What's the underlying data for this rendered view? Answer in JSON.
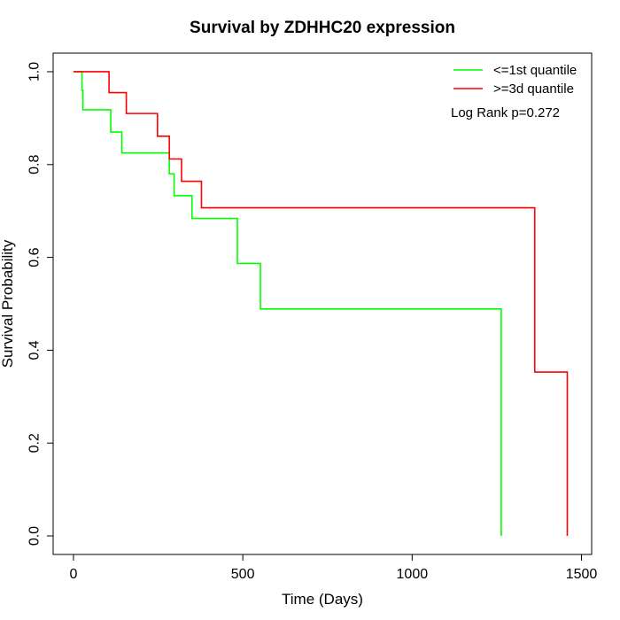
{
  "chart_data": {
    "type": "line",
    "step": true,
    "title": "Survival by ZDHHC20 expression",
    "xlabel": "Time (Days)",
    "ylabel": "Survival Probability",
    "xlim": [
      -60,
      1530
    ],
    "ylim": [
      -0.04,
      1.04
    ],
    "xticks": [
      0,
      500,
      1000,
      1500
    ],
    "xtick_labels": [
      "0",
      "500",
      "1000",
      "1500"
    ],
    "yticks": [
      0.0,
      0.2,
      0.4,
      0.6,
      0.8,
      1.0
    ],
    "ytick_labels": [
      "0.0",
      "0.2",
      "0.4",
      "0.6",
      "0.8",
      "1.0"
    ],
    "grid": false,
    "legend_position": "top-right",
    "annotation": "Log Rank p=0.272",
    "series": [
      {
        "name": "<=1st quantile",
        "color": "#00ff00",
        "x": [
          0,
          25,
          28,
          110,
          143,
          283,
          297,
          350,
          484,
          552,
          1263
        ],
        "y": [
          1.0,
          0.96,
          0.918,
          0.87,
          0.825,
          0.78,
          0.733,
          0.684,
          0.587,
          0.489,
          0.0
        ]
      },
      {
        "name": ">=3d quantile",
        "color": "#ff0000",
        "x": [
          0,
          105,
          156,
          248,
          283,
          319,
          378,
          1362,
          1458
        ],
        "y": [
          1.0,
          0.955,
          0.91,
          0.861,
          0.812,
          0.764,
          0.707,
          0.353,
          0.0
        ]
      }
    ]
  }
}
